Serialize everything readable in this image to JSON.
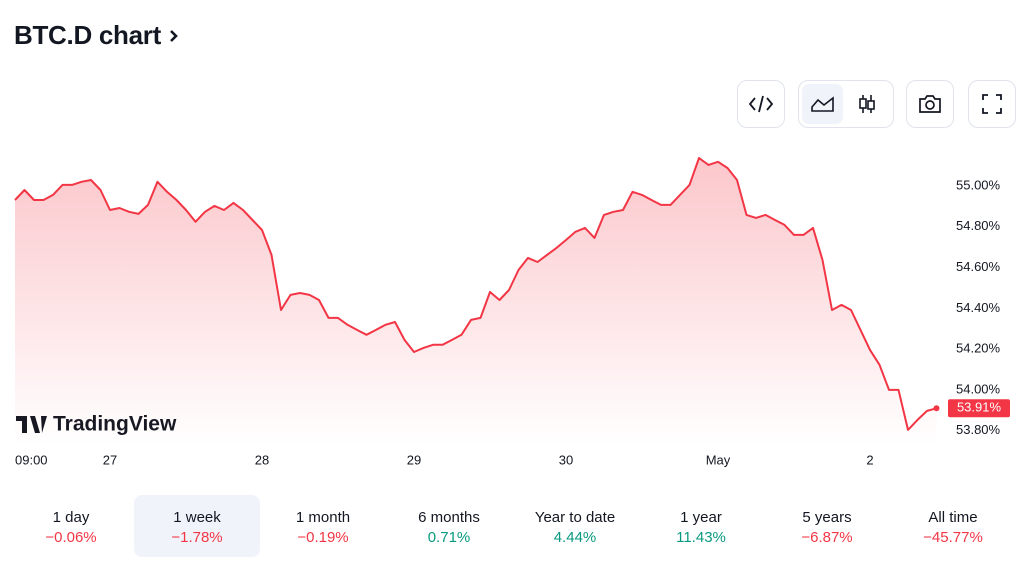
{
  "header": {
    "title": "BTC.D chart"
  },
  "chart_data": {
    "type": "area",
    "watermark": "TradingView",
    "categories": [
      null,
      null,
      "09:00",
      null,
      null,
      null,
      null,
      null,
      null,
      null,
      "27",
      null,
      null,
      null,
      null,
      null,
      null,
      null,
      null,
      null,
      null,
      null,
      null,
      null,
      null,
      null,
      "28",
      null,
      null,
      null,
      null,
      null,
      null,
      null,
      null,
      null,
      null,
      null,
      null,
      null,
      null,
      null,
      "29",
      null,
      null,
      null,
      null,
      null,
      null,
      null,
      null,
      null,
      null,
      null,
      null,
      null,
      null,
      null,
      "30",
      null,
      null,
      null,
      null,
      null,
      null,
      null,
      null,
      null,
      null,
      null,
      null,
      null,
      null,
      null,
      "May",
      null,
      null,
      null,
      null,
      null,
      null,
      null,
      null,
      null,
      null,
      null,
      null,
      null,
      null,
      null,
      "2",
      null,
      null,
      null,
      null,
      null,
      null,
      null
    ],
    "values": [
      54.931,
      54.98,
      54.931,
      54.931,
      54.956,
      55.005,
      55.005,
      55.02,
      55.029,
      54.98,
      54.882,
      54.892,
      54.873,
      54.863,
      54.907,
      55.02,
      54.971,
      54.931,
      54.882,
      54.824,
      54.873,
      54.902,
      54.882,
      54.917,
      54.882,
      54.833,
      54.784,
      54.662,
      54.392,
      54.466,
      54.475,
      54.466,
      54.441,
      54.353,
      54.353,
      54.319,
      54.294,
      54.27,
      54.294,
      54.319,
      54.333,
      54.245,
      54.186,
      54.206,
      54.221,
      54.221,
      54.245,
      54.27,
      54.343,
      54.353,
      54.48,
      54.441,
      54.49,
      54.588,
      54.647,
      54.627,
      54.662,
      54.696,
      54.735,
      54.775,
      54.794,
      54.745,
      54.858,
      54.873,
      54.882,
      54.971,
      54.956,
      54.931,
      54.907,
      54.907,
      54.956,
      55.005,
      55.137,
      55.103,
      55.118,
      55.088,
      55.029,
      54.858,
      54.843,
      54.858,
      54.833,
      54.809,
      54.76,
      54.76,
      54.794,
      54.637,
      54.392,
      54.417,
      54.392,
      54.294,
      54.196,
      54.123,
      54.0,
      54.0,
      53.804,
      53.853,
      53.897,
      53.91
    ],
    "color": "#f23645",
    "ylim": [
      53.73,
      55.23
    ],
    "yticks": [
      {
        "value": 53.8,
        "label": "53.80%"
      },
      {
        "value": 54.0,
        "label": "54.00%"
      },
      {
        "value": 54.2,
        "label": "54.20%"
      },
      {
        "value": 54.4,
        "label": "54.40%"
      },
      {
        "value": 54.6,
        "label": "54.60%"
      },
      {
        "value": 54.8,
        "label": "54.80%"
      },
      {
        "value": 55.0,
        "label": "55.00%"
      }
    ],
    "price_marker": {
      "value": 53.91,
      "label": "53.91%"
    },
    "grid": false
  },
  "periods": [
    {
      "label": "1 day",
      "change": "−0.06%",
      "color": "#f23645"
    },
    {
      "label": "1 week",
      "change": "−1.78%",
      "color": "#f23645"
    },
    {
      "label": "1 month",
      "change": "−0.19%",
      "color": "#f23645"
    },
    {
      "label": "6 months",
      "change": "0.71%",
      "color": "#089981"
    },
    {
      "label": "Year to date",
      "change": "4.44%",
      "color": "#089981"
    },
    {
      "label": "1 year",
      "change": "11.43%",
      "color": "#089981"
    },
    {
      "label": "5 years",
      "change": "−6.87%",
      "color": "#f23645"
    },
    {
      "label": "All time",
      "change": "−45.77%",
      "color": "#f23645"
    }
  ],
  "selected_period": 1
}
